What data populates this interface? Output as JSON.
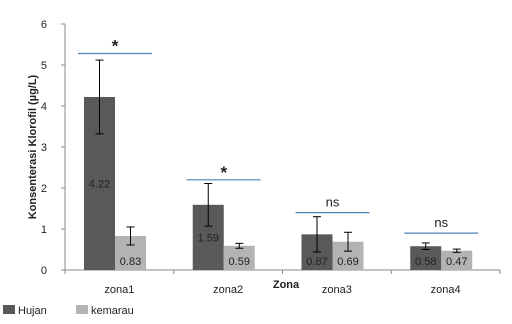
{
  "chart_data": {
    "type": "bar",
    "xlabel": "Zona",
    "ylabel": "Konsenterasi Klorofil (µg/L)",
    "ylim": [
      0,
      6
    ],
    "yticks": [
      0,
      1,
      2,
      3,
      4,
      5,
      6
    ],
    "grid": false,
    "legend_position": "bottom-left",
    "categories": [
      "zona1",
      "zona2",
      "zona3",
      "zona4"
    ],
    "series": [
      {
        "name": "Hujan",
        "color": "#595959",
        "values": [
          4.22,
          1.59,
          0.87,
          0.58
        ],
        "error": [
          0.9,
          0.52,
          0.43,
          0.08
        ],
        "labels": [
          "4.22",
          "1.59",
          "0.87",
          "0.58"
        ]
      },
      {
        "name": "kemarau",
        "color": "#b3b3b3",
        "values": [
          0.83,
          0.59,
          0.69,
          0.47
        ],
        "error": [
          0.22,
          0.06,
          0.23,
          0.04
        ],
        "labels": [
          "0.83",
          "0.59",
          "0.69",
          "0.47"
        ]
      }
    ],
    "significance": [
      {
        "category": "zona1",
        "label": "*",
        "y": 5.28,
        "line_color": "#4f81bd"
      },
      {
        "category": "zona2",
        "label": "*",
        "y": 2.2,
        "line_color": "#4f81bd"
      },
      {
        "category": "zona3",
        "label": "ns",
        "y": 1.4,
        "line_color": "#4f81bd"
      },
      {
        "category": "zona4",
        "label": "ns",
        "y": 0.9,
        "line_color": "#4f81bd"
      }
    ]
  }
}
